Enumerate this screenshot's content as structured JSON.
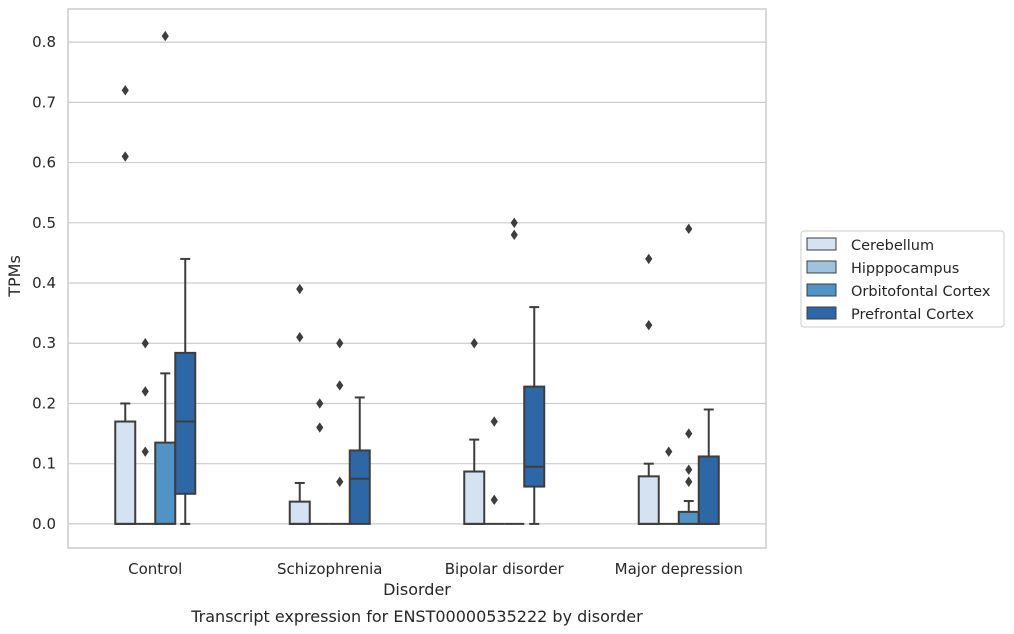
{
  "chart_data": {
    "type": "box",
    "title": "",
    "caption": "Transcript expression for ENST00000535222 by disorder",
    "xlabel": "Disorder",
    "ylabel": "TPMs",
    "ylim": [
      -0.04,
      0.855
    ],
    "yticks": [
      0.0,
      0.1,
      0.2,
      0.3,
      0.4,
      0.5,
      0.6,
      0.7,
      0.8
    ],
    "ytick_labels": [
      "0.0",
      "0.1",
      "0.2",
      "0.3",
      "0.4",
      "0.5",
      "0.6",
      "0.7",
      "0.8"
    ],
    "grid": "horizontal",
    "legend_position": "right",
    "categories": [
      "Control",
      "Schizophrenia",
      "Bipolar disorder",
      "Major depression"
    ],
    "series": [
      {
        "name": "Cerebellum",
        "color": "#d4e2f1",
        "boxes": [
          {
            "q1": 0,
            "median": 0,
            "q3": 0.17,
            "whisker_low": 0,
            "whisker_high": 0.2,
            "outliers": [
              0.61,
              0.72
            ]
          },
          {
            "q1": 0,
            "median": 0,
            "q3": 0.037,
            "whisker_low": 0,
            "whisker_high": 0.068,
            "outliers": [
              0.31,
              0.39
            ]
          },
          {
            "q1": 0,
            "median": 0,
            "q3": 0.087,
            "whisker_low": 0,
            "whisker_high": 0.14,
            "outliers": [
              0.3
            ]
          },
          {
            "q1": 0,
            "median": 0,
            "q3": 0.079,
            "whisker_low": 0,
            "whisker_high": 0.1,
            "outliers": [
              0.33,
              0.44
            ]
          }
        ]
      },
      {
        "name": "Hipppocampus",
        "color": "#9dc3de",
        "boxes": [
          {
            "q1": 0,
            "median": 0,
            "q3": 0,
            "whisker_low": 0,
            "whisker_high": 0,
            "outliers": [
              0.12,
              0.22,
              0.3
            ]
          },
          {
            "q1": 0,
            "median": 0,
            "q3": 0,
            "whisker_low": 0,
            "whisker_high": 0,
            "outliers": [
              0.16,
              0.2
            ]
          },
          {
            "q1": 0,
            "median": 0,
            "q3": 0,
            "whisker_low": 0,
            "whisker_high": 0,
            "outliers": [
              0.04,
              0.17
            ]
          },
          {
            "q1": 0,
            "median": 0,
            "q3": 0,
            "whisker_low": 0,
            "whisker_high": 0,
            "outliers": [
              0.12
            ]
          }
        ]
      },
      {
        "name": "Orbitofontal Cortex",
        "color": "#5193c4",
        "boxes": [
          {
            "q1": 0,
            "median": 0,
            "q3": 0.135,
            "whisker_low": 0,
            "whisker_high": 0.25,
            "outliers": [
              0.81
            ]
          },
          {
            "q1": 0,
            "median": 0,
            "q3": 0,
            "whisker_low": 0,
            "whisker_high": 0,
            "outliers": [
              0.07,
              0.23,
              0.3
            ]
          },
          {
            "q1": 0,
            "median": 0,
            "q3": 0,
            "whisker_low": 0,
            "whisker_high": 0,
            "outliers": [
              0.48,
              0.5
            ]
          },
          {
            "q1": 0,
            "median": 0,
            "q3": 0.02,
            "whisker_low": 0,
            "whisker_high": 0.038,
            "outliers": [
              0.07,
              0.09,
              0.15,
              0.49
            ]
          }
        ]
      },
      {
        "name": "Prefrontal Cortex",
        "color": "#2e67a6",
        "boxes": [
          {
            "q1": 0.05,
            "median": 0.17,
            "q3": 0.284,
            "whisker_low": 0,
            "whisker_high": 0.44,
            "outliers": []
          },
          {
            "q1": 0,
            "median": 0.075,
            "q3": 0.122,
            "whisker_low": 0,
            "whisker_high": 0.21,
            "outliers": []
          },
          {
            "q1": 0.062,
            "median": 0.095,
            "q3": 0.228,
            "whisker_low": 0,
            "whisker_high": 0.36,
            "outliers": []
          },
          {
            "q1": 0,
            "median": 0,
            "q3": 0.112,
            "whisker_low": 0,
            "whisker_high": 0.19,
            "outliers": []
          }
        ]
      }
    ]
  }
}
